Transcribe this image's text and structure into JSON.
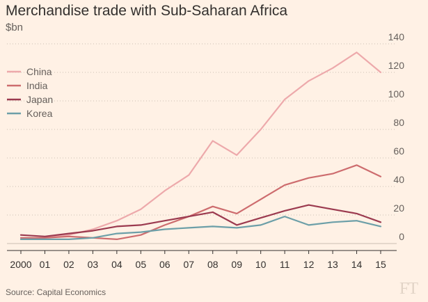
{
  "chart_data": {
    "type": "line",
    "title": "Merchandise trade with Sub-Saharan Africa",
    "ylabel": "$bn",
    "ylim": [
      0,
      140
    ],
    "yticks": [
      0,
      20,
      40,
      60,
      80,
      100,
      120,
      140
    ],
    "x": [
      2000,
      2001,
      2002,
      2003,
      2004,
      2005,
      2006,
      2007,
      2008,
      2009,
      2010,
      2011,
      2012,
      2013,
      2014,
      2015
    ],
    "x_tick_labels": [
      "2000",
      "01",
      "02",
      "03",
      "04",
      "05",
      "06",
      "07",
      "08",
      "09",
      "10",
      "11",
      "12",
      "13",
      "14",
      "15"
    ],
    "grid": "horizontal-dotted",
    "legend_position": "top-left",
    "series": [
      {
        "name": "China",
        "color": "#eda9ab",
        "values": [
          3,
          4,
          6,
          10,
          16,
          24,
          37,
          48,
          72,
          62,
          80,
          101,
          114,
          123,
          134,
          120
        ]
      },
      {
        "name": "India",
        "color": "#cd6c6e",
        "values": [
          4,
          4,
          5,
          4,
          3,
          6,
          13,
          19,
          26,
          21,
          31,
          41,
          46,
          49,
          55,
          47
        ]
      },
      {
        "name": "Japan",
        "color": "#9b3a4f",
        "values": [
          6,
          5,
          7,
          9,
          12,
          13,
          16,
          19,
          22,
          13,
          18,
          23,
          27,
          24,
          21,
          15
        ]
      },
      {
        "name": "Korea",
        "color": "#6c9fa8",
        "values": [
          3,
          3,
          3,
          4,
          7,
          8,
          10,
          11,
          12,
          11,
          13,
          19,
          13,
          15,
          16,
          12
        ]
      }
    ]
  },
  "source": "Source: Capital Economics",
  "logo_text": "FT"
}
